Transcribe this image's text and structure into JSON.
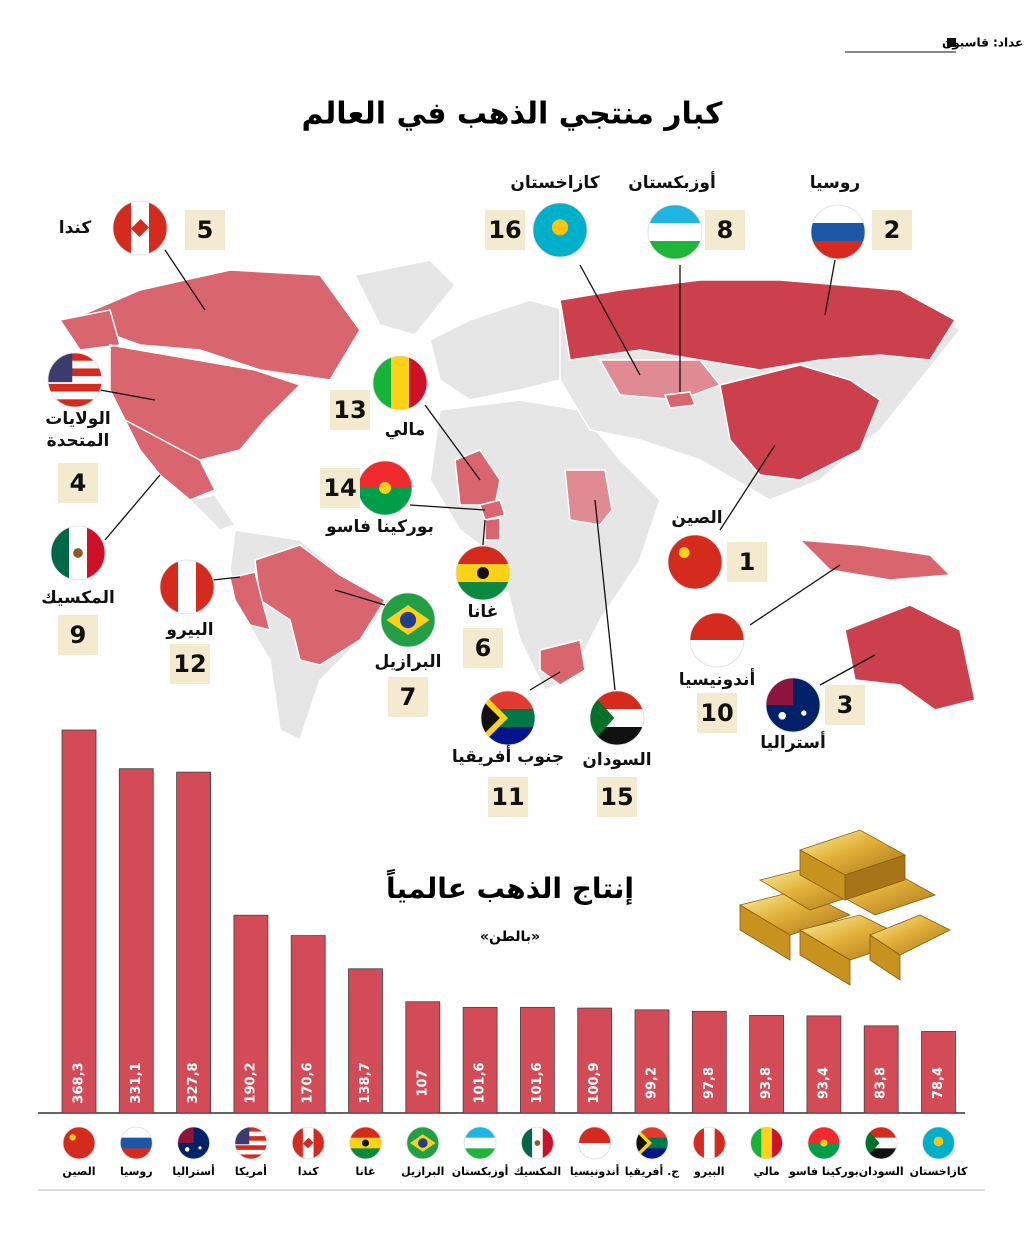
{
  "header": {
    "credit": "إعداد: قاسيون",
    "title": "كبار منتجي الذهب في العالم"
  },
  "map": {
    "countries": [
      {
        "name": "الصين",
        "rank": 1
      },
      {
        "name": "روسيا",
        "rank": 2
      },
      {
        "name": "أستراليا",
        "rank": 3
      },
      {
        "name": "الولايات المتحدة",
        "rank": 4
      },
      {
        "name": "كندا",
        "rank": 5
      },
      {
        "name": "غانا",
        "rank": 6
      },
      {
        "name": "البرازيل",
        "rank": 7
      },
      {
        "name": "أوزبكستان",
        "rank": 8
      },
      {
        "name": "المكسيك",
        "rank": 9
      },
      {
        "name": "أندونيسيا",
        "rank": 10
      },
      {
        "name": "جنوب أفريقيا",
        "rank": 11
      },
      {
        "name": "البيرو",
        "rank": 12
      },
      {
        "name": "مالي",
        "rank": 13
      },
      {
        "name": "بوركينا فاسو",
        "rank": 14
      },
      {
        "name": "السودان",
        "rank": 15
      },
      {
        "name": "كازاخستان",
        "rank": 16
      }
    ]
  },
  "chart_data": {
    "type": "bar",
    "title": "إنتاج الذهب عالمياً",
    "subtitle": "«بالطن»",
    "categories": [
      "الصين",
      "روسيا",
      "أستراليا",
      "أمريكا",
      "كندا",
      "غانا",
      "البرازيل",
      "أوزبكستان",
      "المكسيك",
      "أندونيسيا",
      "ج. أفريقيا",
      "البيرو",
      "مالي",
      "بوركينا فاسو",
      "السودان",
      "كازاخستان"
    ],
    "values": [
      368.3,
      331.1,
      327.8,
      190.2,
      170.6,
      138.7,
      107,
      101.6,
      101.6,
      100.9,
      99.2,
      97.8,
      93.8,
      93.4,
      83.8,
      78.4
    ],
    "value_labels": [
      "368,3",
      "331,1",
      "327,8",
      "190,2",
      "170,6",
      "138,7",
      "107",
      "101,6",
      "101,6",
      "100,9",
      "99,2",
      "97,8",
      "93,8",
      "93,4",
      "83,8",
      "78,4"
    ],
    "color": "#d24b57"
  }
}
